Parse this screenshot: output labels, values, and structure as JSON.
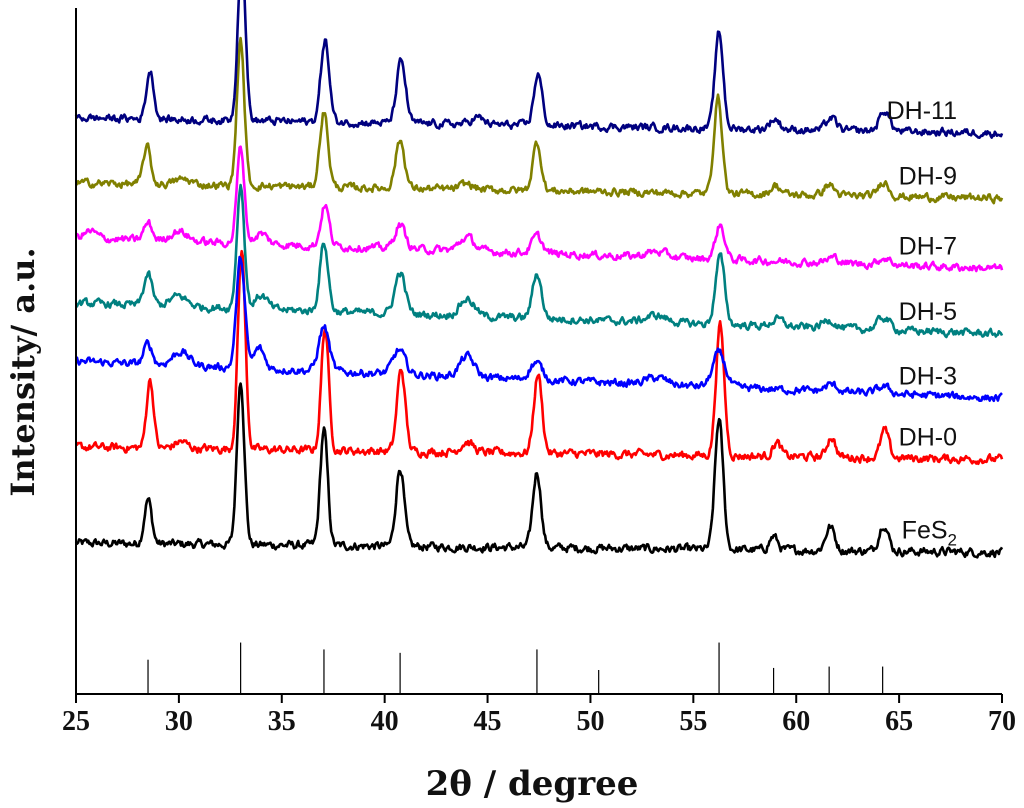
{
  "chart_data": {
    "type": "line",
    "title": "",
    "xlabel": "2θ / degree",
    "ylabel": "Intensity/ a.u.",
    "xlim": [
      25,
      70
    ],
    "xticks": [
      25,
      30,
      35,
      40,
      45,
      50,
      55,
      60,
      65,
      70
    ],
    "ylim": [
      0,
      100
    ],
    "grid": false,
    "legend": "inline labels at right end of each trace",
    "series": [
      {
        "name": "FeS2",
        "label_main": "FeS",
        "label_sub": "2",
        "color": "#000000",
        "baseline": 22.0,
        "slope": -0.03,
        "noise": 0.5,
        "peaks": [
          [
            28.5,
            6.5,
            0.18
          ],
          [
            33.0,
            24,
            0.18
          ],
          [
            37.05,
            17,
            0.18
          ],
          [
            40.75,
            11.5,
            0.2
          ],
          [
            47.4,
            11,
            0.2
          ],
          [
            56.25,
            19,
            0.2
          ],
          [
            58.9,
            2.0,
            0.2
          ],
          [
            61.65,
            3.5,
            0.22
          ],
          [
            64.25,
            4.0,
            0.22
          ]
        ]
      },
      {
        "name": "DH-0",
        "label_main": "DH-0",
        "label_sub": "",
        "color": "#ff0000",
        "baseline": 36.0,
        "slope": -0.04,
        "noise": 0.5,
        "peaks": [
          [
            28.6,
            10,
            0.17
          ],
          [
            30.1,
            1.0,
            0.3
          ],
          [
            33.05,
            29,
            0.18
          ],
          [
            37.1,
            18,
            0.18
          ],
          [
            40.8,
            12,
            0.2
          ],
          [
            44.0,
            1.5,
            0.3
          ],
          [
            47.45,
            11.5,
            0.2
          ],
          [
            56.3,
            19,
            0.2
          ],
          [
            59.05,
            2.0,
            0.2
          ],
          [
            61.7,
            3.0,
            0.2
          ],
          [
            64.3,
            4.0,
            0.2
          ]
        ]
      },
      {
        "name": "DH-3",
        "label_main": "DH-3",
        "label_sub": "",
        "color": "#0000ff",
        "baseline": 48.5,
        "slope": -0.12,
        "noise": 0.45,
        "peaks": [
          [
            28.5,
            3.0,
            0.2
          ],
          [
            30.1,
            2.0,
            0.4
          ],
          [
            33.0,
            16,
            0.2
          ],
          [
            33.9,
            3.0,
            0.25
          ],
          [
            37.05,
            6.5,
            0.25
          ],
          [
            40.7,
            3.5,
            0.3
          ],
          [
            44.0,
            3.0,
            0.35
          ],
          [
            47.35,
            2.5,
            0.3
          ],
          [
            53.2,
            1.0,
            0.5
          ],
          [
            56.25,
            5.0,
            0.3
          ],
          [
            61.7,
            1.0,
            0.3
          ],
          [
            64.25,
            1.0,
            0.3
          ]
        ]
      },
      {
        "name": "DH-5",
        "label_main": "DH-5",
        "label_sub": "",
        "color": "#008080",
        "baseline": 57.0,
        "slope": -0.1,
        "noise": 0.45,
        "peaks": [
          [
            28.5,
            4.5,
            0.2
          ],
          [
            30.0,
            1.5,
            0.4
          ],
          [
            33.0,
            18,
            0.18
          ],
          [
            34.0,
            2.0,
            0.3
          ],
          [
            37.05,
            10,
            0.2
          ],
          [
            40.75,
            6.0,
            0.25
          ],
          [
            44.0,
            2.5,
            0.35
          ],
          [
            47.4,
            6.5,
            0.22
          ],
          [
            53.2,
            1.0,
            0.5
          ],
          [
            56.3,
            10,
            0.22
          ],
          [
            59.1,
            1.0,
            0.3
          ],
          [
            61.6,
            1.2,
            0.3
          ],
          [
            64.25,
            1.8,
            0.3
          ]
        ]
      },
      {
        "name": "DH-7",
        "label_main": "DH-7",
        "label_sub": "",
        "color": "#ff00ff",
        "baseline": 66.5,
        "slope": -0.1,
        "noise": 0.45,
        "peaks": [
          [
            25.7,
            1.0,
            0.3
          ],
          [
            28.5,
            2.5,
            0.2
          ],
          [
            30.0,
            1.5,
            0.4
          ],
          [
            33.0,
            14,
            0.18
          ],
          [
            34.0,
            1.5,
            0.3
          ],
          [
            37.1,
            6.0,
            0.2
          ],
          [
            40.75,
            3.5,
            0.25
          ],
          [
            44.0,
            2.0,
            0.35
          ],
          [
            47.4,
            2.5,
            0.25
          ],
          [
            53.2,
            0.8,
            0.5
          ],
          [
            56.3,
            5.0,
            0.22
          ],
          [
            61.8,
            0.8,
            0.3
          ],
          [
            64.3,
            1.0,
            0.3
          ]
        ]
      },
      {
        "name": "DH-9",
        "label_main": "DH-9",
        "label_sub": "",
        "color": "#808000",
        "baseline": 74.5,
        "slope": -0.05,
        "noise": 0.45,
        "peaks": [
          [
            28.45,
            5.5,
            0.18
          ],
          [
            30.2,
            0.8,
            0.4
          ],
          [
            33.0,
            21,
            0.18
          ],
          [
            37.05,
            11,
            0.2
          ],
          [
            40.75,
            7.0,
            0.22
          ],
          [
            44.0,
            0.8,
            0.3
          ],
          [
            47.4,
            7.0,
            0.2
          ],
          [
            56.2,
            14,
            0.2
          ],
          [
            59.0,
            1.3,
            0.25
          ],
          [
            61.6,
            1.6,
            0.25
          ],
          [
            64.25,
            2.2,
            0.25
          ]
        ]
      },
      {
        "name": "DH-11",
        "label_main": "DH-11",
        "label_sub": "",
        "color": "#00007f",
        "baseline": 84.0,
        "slope": -0.05,
        "noise": 0.45,
        "peaks": [
          [
            28.6,
            7.0,
            0.18
          ],
          [
            33.05,
            25,
            0.18
          ],
          [
            37.1,
            12,
            0.2
          ],
          [
            40.8,
            9.0,
            0.22
          ],
          [
            44.5,
            1.0,
            0.3
          ],
          [
            47.45,
            7.5,
            0.2
          ],
          [
            56.25,
            14,
            0.2
          ],
          [
            58.95,
            1.5,
            0.25
          ],
          [
            61.7,
            1.8,
            0.25
          ],
          [
            64.3,
            3.0,
            0.25
          ]
        ]
      }
    ],
    "reference_lines": [
      {
        "x": 28.5,
        "h": 5.0
      },
      {
        "x": 33.0,
        "h": 7.5
      },
      {
        "x": 37.05,
        "h": 6.5
      },
      {
        "x": 40.75,
        "h": 6.0
      },
      {
        "x": 47.4,
        "h": 6.5
      },
      {
        "x": 50.4,
        "h": 3.5
      },
      {
        "x": 56.25,
        "h": 7.5
      },
      {
        "x": 58.9,
        "h": 3.8
      },
      {
        "x": 61.6,
        "h": 4.0
      },
      {
        "x": 64.2,
        "h": 4.0
      }
    ]
  }
}
